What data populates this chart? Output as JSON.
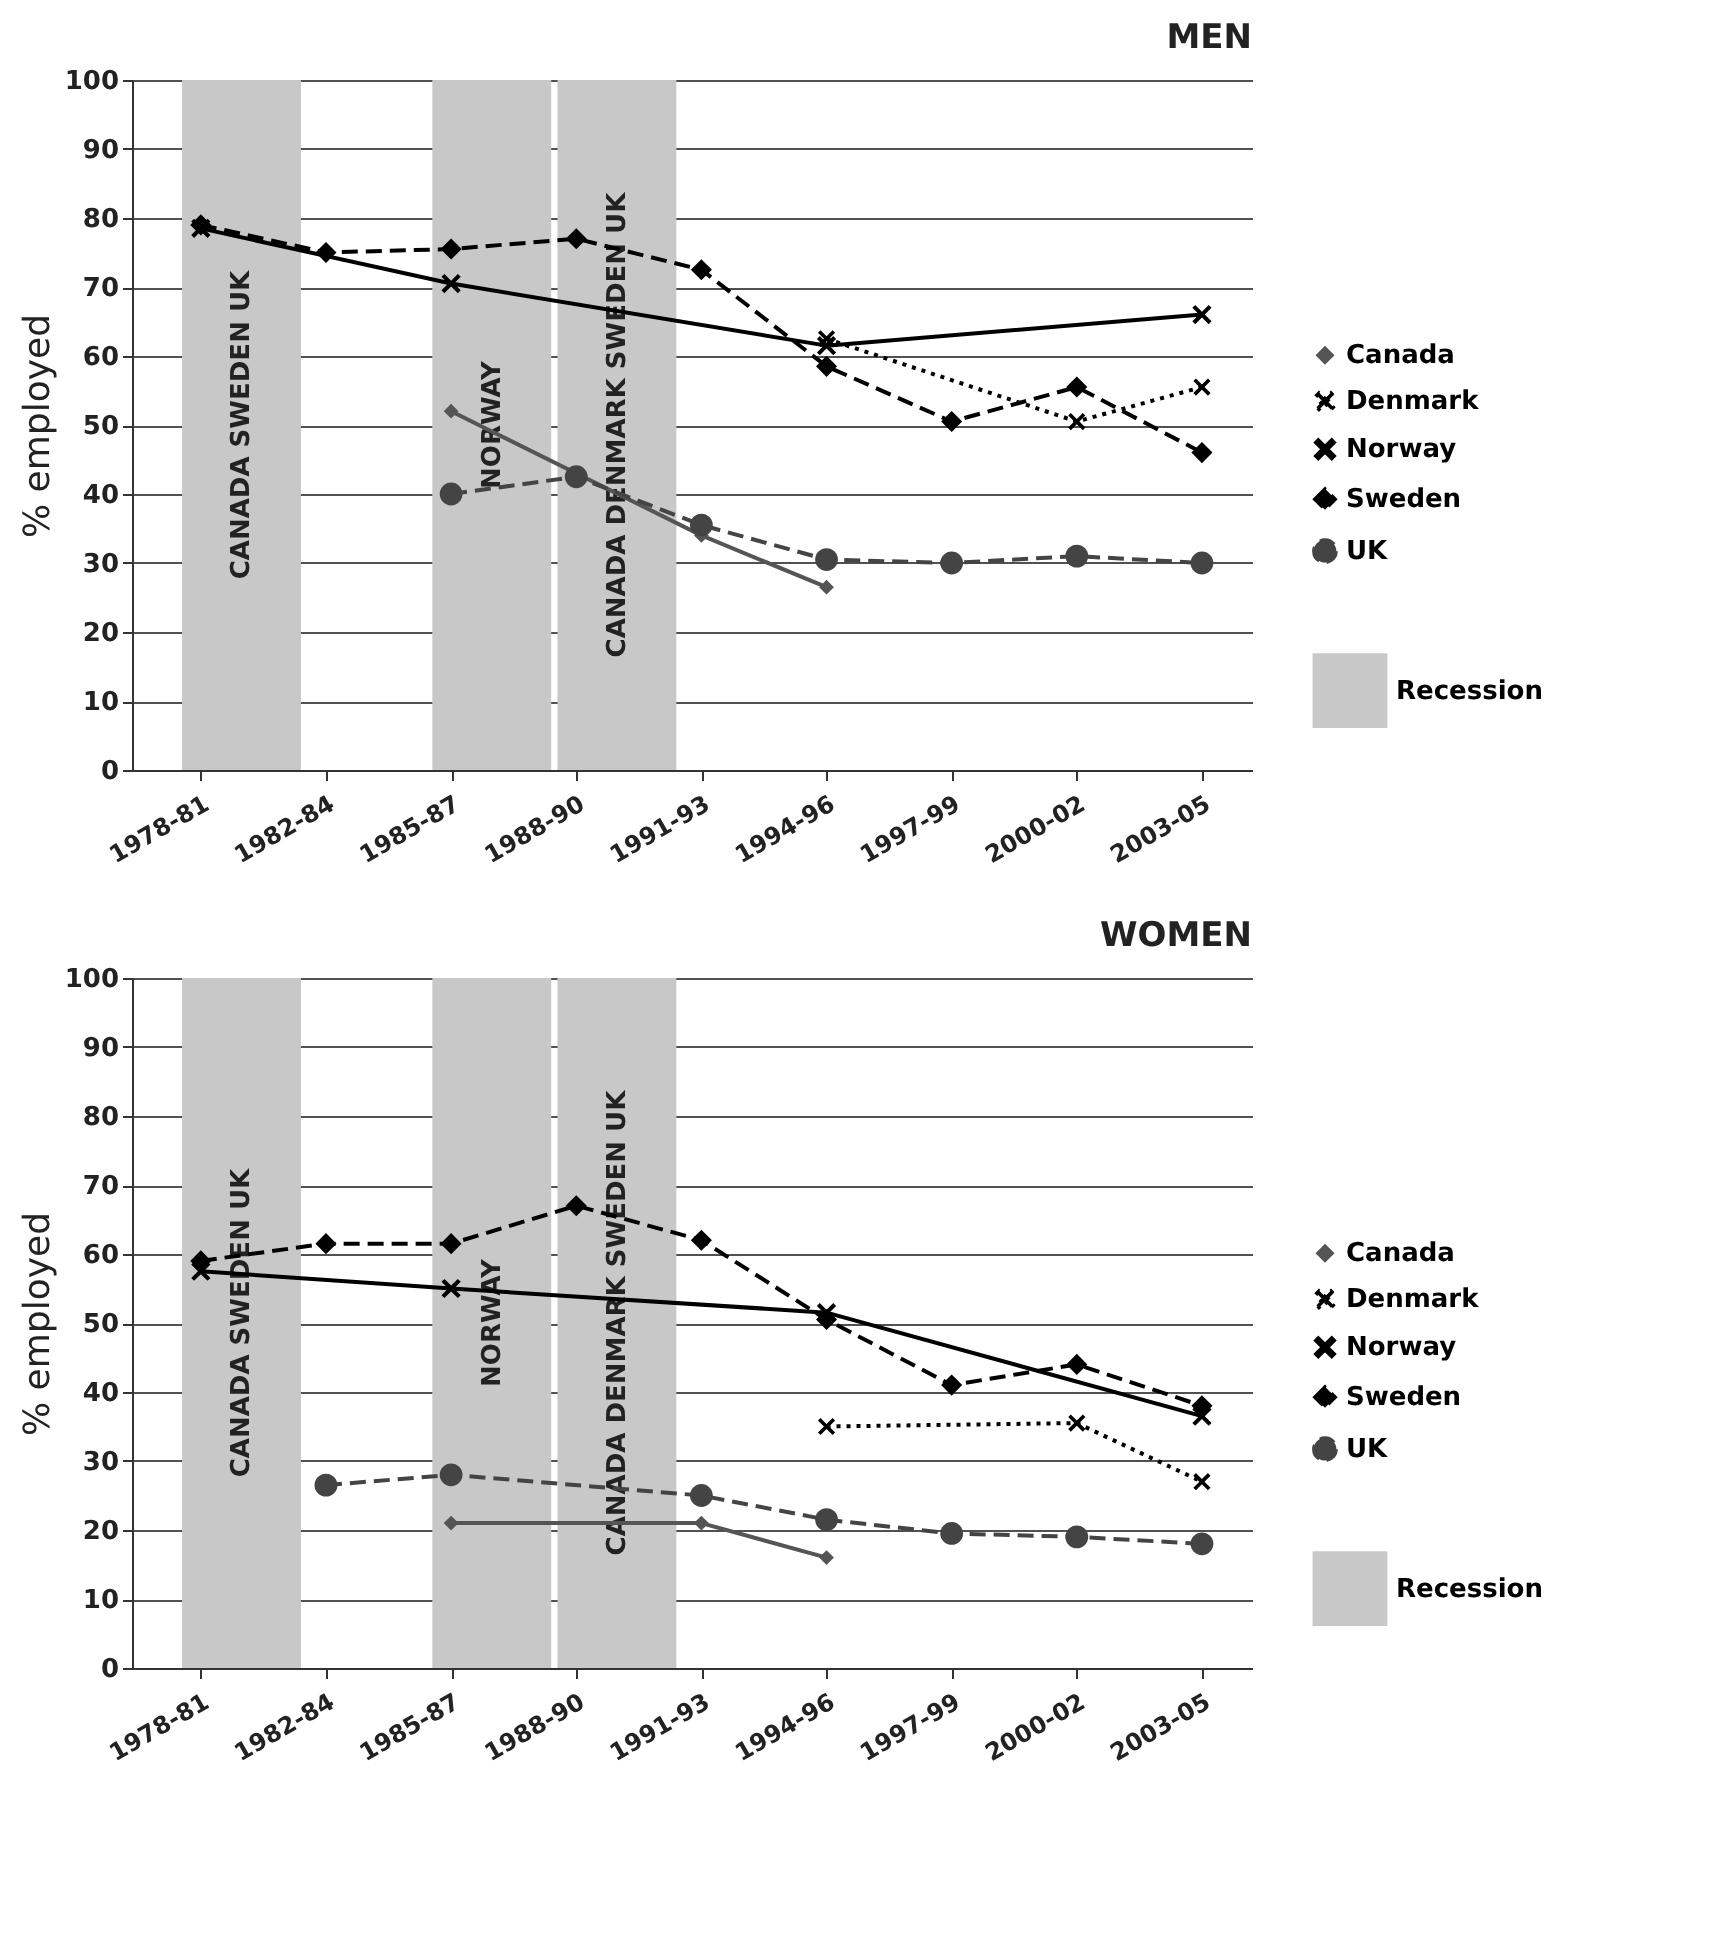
{
  "chart_data": [
    {
      "type": "line",
      "title": "MEN",
      "ylabel": "% employed",
      "categories": [
        "1978-81",
        "1982-84",
        "1985-87",
        "1988-90",
        "1991-93",
        "1994-96",
        "1997-99",
        "2000-02",
        "2003-05"
      ],
      "ylim": [
        0,
        100
      ],
      "yticks": [
        0,
        10,
        20,
        30,
        40,
        50,
        60,
        70,
        80,
        90,
        100
      ],
      "grid": "y",
      "legend": "right",
      "series": [
        {
          "name": "Canada",
          "color": "#555555",
          "marker": "diamond",
          "line_style": "solid",
          "values": [
            null,
            null,
            52,
            null,
            34,
            26.5,
            null,
            null,
            null
          ]
        },
        {
          "name": "Denmark",
          "color": "#000000",
          "marker": "cross",
          "line_style": "dotted",
          "values": [
            null,
            null,
            null,
            null,
            null,
            62.5,
            null,
            50.5,
            55.5
          ]
        },
        {
          "name": "Norway",
          "color": "#000000",
          "marker": "cross",
          "line_style": "solid",
          "values": [
            78.5,
            null,
            70.5,
            null,
            null,
            61.5,
            null,
            null,
            66
          ]
        },
        {
          "name": "Sweden",
          "color": "#000000",
          "marker": "diamond",
          "line_style": "dashed",
          "values": [
            79,
            75,
            75.5,
            77,
            72.5,
            58.5,
            50.5,
            55.5,
            46
          ]
        },
        {
          "name": "UK",
          "color": "#444444",
          "marker": "circle",
          "line_style": "dashed",
          "values": [
            null,
            null,
            40,
            42.5,
            35.5,
            30.5,
            30,
            31,
            30
          ]
        }
      ],
      "bands": [
        {
          "axis": "x",
          "from": "1978-81",
          "to": "1982-84",
          "label": "CANADA SWEDEN UK",
          "color": "#c8c8c8"
        },
        {
          "axis": "x",
          "from": "1985-87",
          "to": "1988-90",
          "label": "NORWAY",
          "color": "#c8c8c8"
        },
        {
          "axis": "x",
          "from": "1988-90",
          "to": "1991-93",
          "label": "CANADA DENMARK SWEDEN UK",
          "color": "#c8c8c8"
        }
      ],
      "annotations": [
        "Recession"
      ]
    },
    {
      "type": "line",
      "title": "WOMEN",
      "ylabel": "% employed",
      "categories": [
        "1978-81",
        "1982-84",
        "1985-87",
        "1988-90",
        "1991-93",
        "1994-96",
        "1997-99",
        "2000-02",
        "2003-05"
      ],
      "ylim": [
        0,
        100
      ],
      "yticks": [
        0,
        10,
        20,
        30,
        40,
        50,
        60,
        70,
        80,
        90,
        100
      ],
      "grid": "y",
      "legend": "right",
      "series": [
        {
          "name": "Canada",
          "color": "#555555",
          "marker": "diamond",
          "line_style": "solid",
          "values": [
            null,
            null,
            21,
            null,
            21,
            16,
            null,
            null,
            null
          ]
        },
        {
          "name": "Denmark",
          "color": "#000000",
          "marker": "cross",
          "line_style": "dotted",
          "values": [
            null,
            null,
            null,
            null,
            null,
            35,
            null,
            35.5,
            27
          ]
        },
        {
          "name": "Norway",
          "color": "#000000",
          "marker": "cross",
          "line_style": "solid",
          "values": [
            57.5,
            null,
            55,
            null,
            null,
            51.5,
            null,
            null,
            36.5
          ]
        },
        {
          "name": "Sweden",
          "color": "#000000",
          "marker": "diamond",
          "line_style": "dashed",
          "values": [
            59,
            61.5,
            61.5,
            67,
            62,
            50.5,
            41,
            44,
            38
          ]
        },
        {
          "name": "UK",
          "color": "#444444",
          "marker": "circle",
          "line_style": "dashed",
          "values": [
            null,
            26.5,
            28,
            null,
            25,
            21.5,
            19.5,
            19,
            18
          ]
        }
      ],
      "bands": [
        {
          "axis": "x",
          "from": "1978-81",
          "to": "1982-84",
          "label": "CANADA SWEDEN UK",
          "color": "#c8c8c8"
        },
        {
          "axis": "x",
          "from": "1985-87",
          "to": "1988-90",
          "label": "NORWAY",
          "color": "#c8c8c8"
        },
        {
          "axis": "x",
          "from": "1988-90",
          "to": "1991-93",
          "label": "CANADA DENMARK SWEDEN UK",
          "color": "#c8c8c8"
        }
      ],
      "annotations": [
        "Recession"
      ]
    }
  ]
}
